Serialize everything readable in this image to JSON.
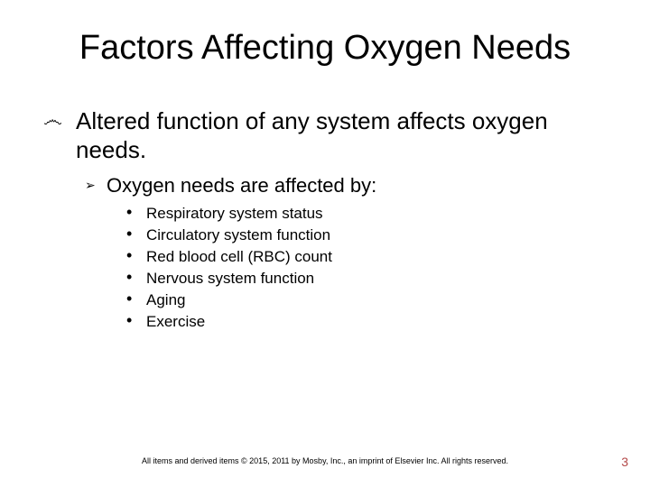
{
  "title": "Factors Affecting Oxygen Needs",
  "lvl1_bullet": "෴",
  "lvl1_text": "Altered function of any system affects oxygen needs.",
  "lvl2_bullet": "➢",
  "lvl2_text": "Oxygen needs are affected by:",
  "lvl3_bullet": "•",
  "lvl3_items": [
    "Respiratory system status",
    "Circulatory system function",
    "Red blood cell (RBC) count",
    "Nervous system function",
    "Aging",
    "Exercise"
  ],
  "footer": "All items and derived items © 2015, 2011 by Mosby, Inc., an imprint of Elsevier Inc. All rights reserved.",
  "page_number": "3",
  "colors": {
    "text": "#000000",
    "pagenum": "#b44a4a",
    "background": "#ffffff"
  }
}
